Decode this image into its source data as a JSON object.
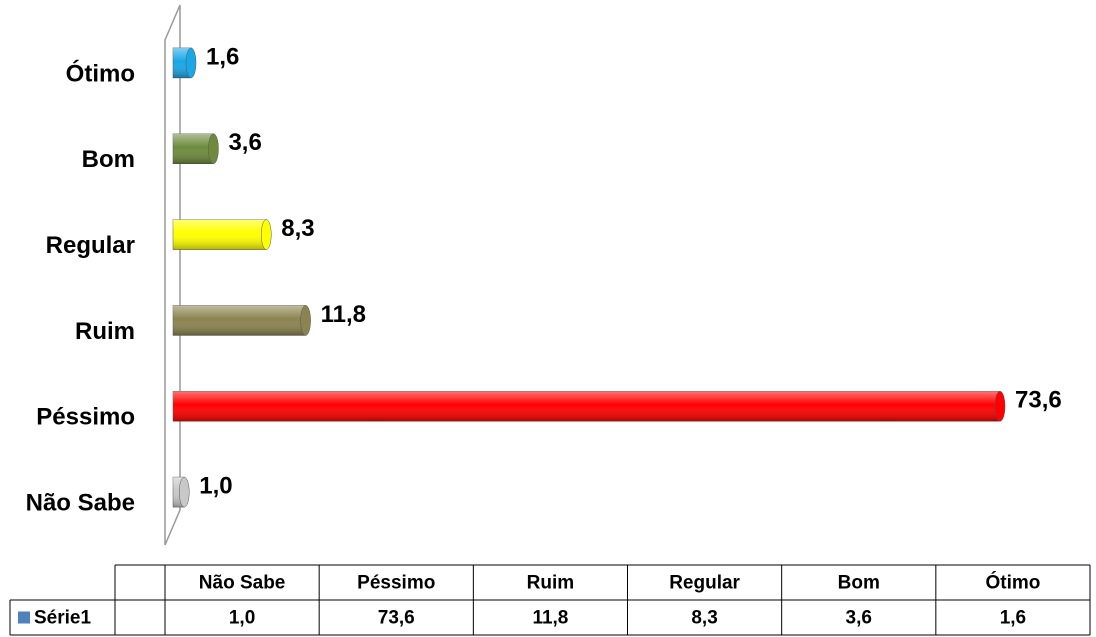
{
  "chart_data": {
    "type": "bar",
    "orientation": "horizontal",
    "categories": [
      "Não Sabe",
      "Péssimo",
      "Ruim",
      "Regular",
      "Bom",
      "Ótimo"
    ],
    "series": [
      {
        "name": "Série1",
        "color": "#4f81bd",
        "values": [
          1.0,
          73.6,
          11.8,
          8.3,
          3.6,
          1.6
        ],
        "value_labels": [
          "1,0",
          "73,6",
          "11,8",
          "8,3",
          "3,6",
          "1,6"
        ]
      }
    ],
    "bar_colors": [
      "#c8c8c8",
      "#ff0000",
      "#8b8450",
      "#ffff00",
      "#6e8b3d",
      "#1aa7e6"
    ]
  }
}
